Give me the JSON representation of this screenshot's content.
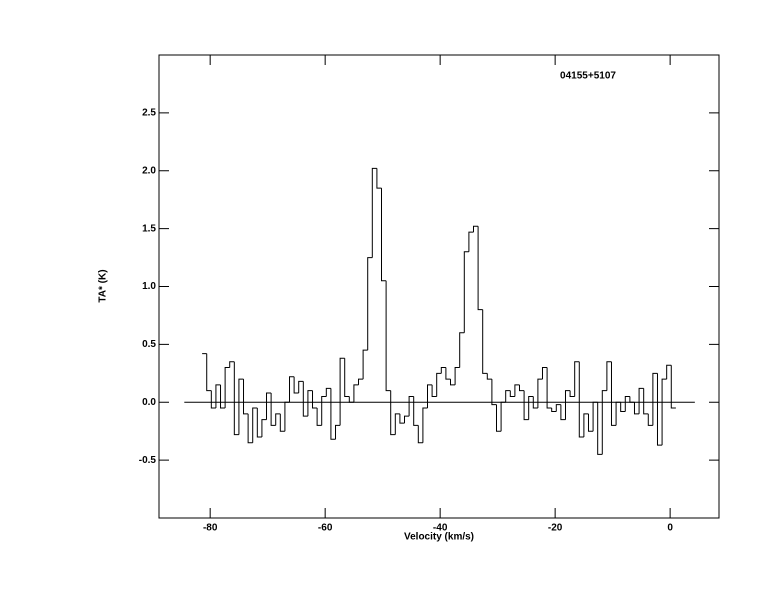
{
  "chart_data": {
    "type": "step",
    "title": "04155+5107",
    "xlabel": "Velocity (km/s)",
    "ylabel": "TA* (K)",
    "xlim": [
      -88.9,
      8.5
    ],
    "ylim": [
      -1.0,
      3.0
    ],
    "xticks": [
      -80,
      -60,
      -40,
      -20,
      0
    ],
    "yticks": [
      {
        "value": -0.5,
        "label": "-0.5"
      },
      {
        "value": 0,
        "label": "0.0"
      },
      {
        "value": 0.5,
        "label": "0.5"
      },
      {
        "value": 1,
        "label": "1.0"
      },
      {
        "value": 1.5,
        "label": "1.5"
      },
      {
        "value": 2,
        "label": "2.0"
      },
      {
        "value": 2.5,
        "label": "2.5"
      }
    ],
    "baseline": {
      "y": 0,
      "x": [
        -84.5,
        4.3
      ]
    },
    "color": "#000000",
    "x": [
      -81.0,
      -80.2,
      -79.4,
      -78.6,
      -77.8,
      -77.0,
      -76.2,
      -75.4,
      -74.6,
      -73.8,
      -73.0,
      -72.2,
      -71.4,
      -70.6,
      -69.8,
      -69.0,
      -68.2,
      -67.4,
      -66.6,
      -65.8,
      -65.0,
      -64.2,
      -63.4,
      -62.6,
      -61.8,
      -61.0,
      -60.2,
      -59.4,
      -58.6,
      -57.8,
      -57.0,
      -56.2,
      -55.4,
      -54.6,
      -53.8,
      -53.0,
      -52.2,
      -51.4,
      -50.6,
      -49.8,
      -49.0,
      -48.2,
      -47.4,
      -46.6,
      -45.8,
      -45.0,
      -44.2,
      -43.4,
      -42.6,
      -41.8,
      -41.0,
      -40.2,
      -39.4,
      -38.6,
      -37.8,
      -37.0,
      -36.2,
      -35.4,
      -34.6,
      -33.8,
      -33.0,
      -32.2,
      -31.4,
      -30.6,
      -29.8,
      -29.0,
      -28.2,
      -27.4,
      -26.6,
      -25.8,
      -25.0,
      -24.2,
      -23.4,
      -22.6,
      -21.8,
      -21.0,
      -20.2,
      -19.4,
      -18.6,
      -17.8,
      -17.0,
      -16.2,
      -15.4,
      -14.6,
      -13.8,
      -13.0,
      -12.2,
      -11.4,
      -10.6,
      -9.8,
      -9.0,
      -8.2,
      -7.4,
      -6.6,
      -5.8,
      -5.0,
      -4.2,
      -3.4,
      -2.6,
      -1.8,
      -1.0,
      -0.2,
      0.6
    ],
    "values": [
      0.42,
      0.1,
      -0.05,
      0.15,
      -0.05,
      0.3,
      0.35,
      -0.28,
      0.2,
      -0.1,
      -0.35,
      -0.05,
      -0.3,
      -0.15,
      0.08,
      -0.2,
      -0.1,
      -0.25,
      0.0,
      0.22,
      0.08,
      0.18,
      -0.12,
      0.1,
      -0.05,
      -0.2,
      0.05,
      0.12,
      -0.32,
      -0.2,
      0.38,
      0.05,
      0.0,
      0.15,
      0.2,
      0.45,
      1.25,
      2.02,
      1.85,
      1.05,
      0.1,
      -0.28,
      -0.1,
      -0.18,
      -0.12,
      0.05,
      -0.2,
      -0.35,
      -0.05,
      0.15,
      0.05,
      0.25,
      0.3,
      0.2,
      0.15,
      0.3,
      0.6,
      1.3,
      1.47,
      1.52,
      0.8,
      0.25,
      0.2,
      -0.02,
      -0.25,
      0.0,
      0.1,
      0.05,
      0.15,
      0.1,
      -0.15,
      0.05,
      -0.05,
      0.2,
      0.3,
      -0.05,
      -0.08,
      -0.02,
      -0.15,
      0.1,
      0.05,
      0.35,
      -0.3,
      -0.1,
      -0.25,
      0.0,
      -0.45,
      0.1,
      0.35,
      -0.2,
      0.0,
      -0.08,
      0.05,
      0.0,
      -0.1,
      0.12,
      -0.1,
      -0.2,
      0.25,
      -0.37,
      0.2,
      0.32,
      -0.05
    ]
  }
}
